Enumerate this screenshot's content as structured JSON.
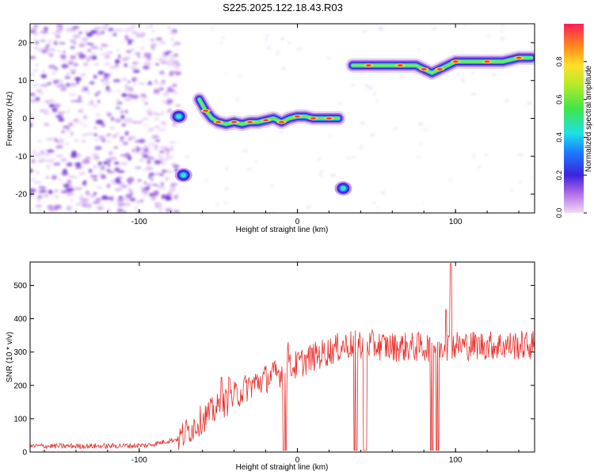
{
  "title": "S225.2025.122.18.43.R03",
  "chart_data": [
    {
      "type": "heatmap",
      "title": "",
      "xlabel": "Height of straight line (km)",
      "ylabel": "Frequency (Hz)",
      "xlim": [
        -169,
        150
      ],
      "ylim": [
        -25,
        25
      ],
      "xticks": [
        -100,
        0,
        100
      ],
      "yticks": [
        -20,
        -10,
        0,
        10,
        20
      ],
      "colorbar": {
        "label": "Normalized spectral amplitude",
        "range": [
          0,
          1
        ],
        "ticks": [
          "0.0",
          "0.2",
          "0.4",
          "0.6",
          "0.8"
        ]
      },
      "ridges": [
        {
          "x": [
            -62,
            -58,
            -54,
            -50,
            -45,
            -40,
            -35,
            -30,
            -25,
            -20,
            -15,
            -10,
            -5,
            0,
            5,
            10,
            15,
            20,
            26
          ],
          "y": [
            5,
            2,
            0,
            -1,
            -1.5,
            -1,
            -1.5,
            -1,
            -1,
            -0.5,
            0,
            -1,
            0,
            0.5,
            0.5,
            0,
            0,
            0,
            0
          ]
        },
        {
          "x": [
            35,
            45,
            55,
            65,
            75,
            80,
            85,
            90,
            95,
            100,
            110,
            120,
            130,
            140,
            148
          ],
          "y": [
            14,
            14,
            14,
            14,
            14,
            13,
            12,
            13,
            14,
            15,
            15,
            15,
            15,
            16,
            16
          ]
        }
      ],
      "blobs": [
        {
          "x": -72,
          "y": -15
        },
        {
          "x": 29,
          "y": -18.5
        },
        {
          "x": -75,
          "y": 0.5
        }
      ]
    },
    {
      "type": "line",
      "title": "",
      "xlabel": "Height of straight line (km)",
      "ylabel": "SNR (10 * v/v)",
      "xlim": [
        -169,
        150
      ],
      "ylim": [
        0,
        570
      ],
      "xticks": [
        -100,
        0,
        100
      ],
      "yticks": [
        0,
        100,
        200,
        300,
        400,
        500
      ],
      "color": "#e8302b",
      "trend_x": [
        -169,
        -120,
        -95,
        -75,
        -60,
        -45,
        -30,
        -10,
        10,
        30,
        40,
        60,
        80,
        100,
        120,
        150
      ],
      "trend_y": [
        18,
        18,
        20,
        40,
        100,
        150,
        200,
        240,
        285,
        320,
        325,
        315,
        315,
        320,
        320,
        320
      ],
      "dropouts": [
        {
          "x": -8,
          "y": 5
        },
        {
          "x": 37,
          "y": 5
        },
        {
          "x": 43,
          "y": 5
        },
        {
          "x": 85,
          "y": 5
        },
        {
          "x": 89,
          "y": 5
        }
      ],
      "spikes": [
        {
          "x": -48,
          "y": 225
        },
        {
          "x": -43,
          "y": 225
        },
        {
          "x": -6,
          "y": 330
        },
        {
          "x": 94,
          "y": 430
        },
        {
          "x": 97,
          "y": 570
        }
      ]
    }
  ]
}
